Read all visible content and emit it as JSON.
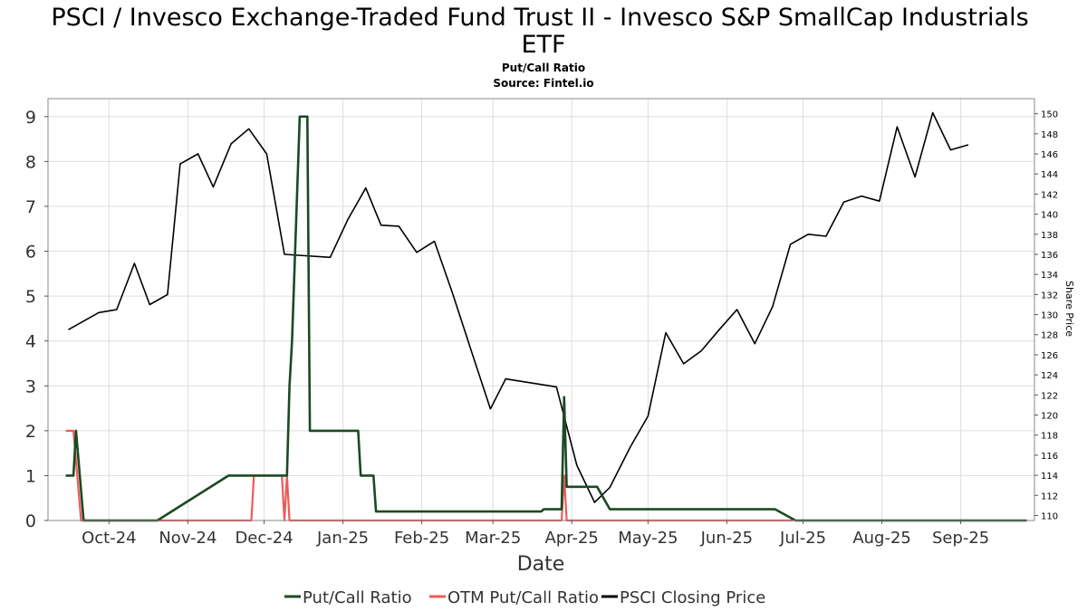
{
  "chart_data": {
    "type": "line",
    "title_line1": "PSCI / Invesco Exchange-Traded Fund Trust II - Invesco S&P SmallCap Industrials",
    "title_line2": "ETF",
    "subtitle": "Put/Call Ratio",
    "source": "Source: Fintel.io",
    "xlabel": "Date",
    "ylabel_right": "Share Price",
    "x_range": [
      "2024-09-07",
      "2025-09-30"
    ],
    "ylim_left": [
      0,
      9.4
    ],
    "ylim_right": [
      109.5,
      151.5
    ],
    "left_ticks": [
      "0",
      "1",
      "2",
      "3",
      "4",
      "5",
      "6",
      "7",
      "8",
      "9"
    ],
    "right_ticks": [
      "110",
      "112",
      "114",
      "116",
      "118",
      "120",
      "122",
      "124",
      "126",
      "128",
      "130",
      "132",
      "134",
      "136",
      "138",
      "140",
      "142",
      "144",
      "146",
      "148",
      "150"
    ],
    "x_ticks": [
      {
        "date": "2024-10-01",
        "label": "Oct-24"
      },
      {
        "date": "2024-11-01",
        "label": "Nov-24"
      },
      {
        "date": "2024-12-01",
        "label": "Dec-24"
      },
      {
        "date": "2025-01-01",
        "label": "Jan-25"
      },
      {
        "date": "2025-02-01",
        "label": "Feb-25"
      },
      {
        "date": "2025-03-01",
        "label": "Mar-25"
      },
      {
        "date": "2025-04-01",
        "label": "Apr-25"
      },
      {
        "date": "2025-05-01",
        "label": "May-25"
      },
      {
        "date": "2025-06-01",
        "label": "Jun-25"
      },
      {
        "date": "2025-07-01",
        "label": "Jul-25"
      },
      {
        "date": "2025-08-01",
        "label": "Aug-25"
      },
      {
        "date": "2025-09-01",
        "label": "Sep-25"
      }
    ],
    "grid": true,
    "legend_position": "bottom",
    "series": [
      {
        "name": "Put/Call Ratio",
        "color": "#1b4a22",
        "axis": "left",
        "points": [
          [
            "2024-09-14",
            1.0
          ],
          [
            "2024-09-17",
            1.0
          ],
          [
            "2024-09-18",
            2.0
          ],
          [
            "2024-09-21",
            0.0
          ],
          [
            "2024-10-20",
            0.0
          ],
          [
            "2024-11-17",
            1.0
          ],
          [
            "2024-12-10",
            1.0
          ],
          [
            "2024-12-11",
            3.0
          ],
          [
            "2024-12-12",
            4.0
          ],
          [
            "2024-12-15",
            9.0
          ],
          [
            "2024-12-18",
            9.0
          ],
          [
            "2024-12-19",
            2.0
          ],
          [
            "2025-01-07",
            2.0
          ],
          [
            "2025-01-08",
            1.0
          ],
          [
            "2025-01-13",
            1.0
          ],
          [
            "2025-01-14",
            0.2
          ],
          [
            "2025-03-20",
            0.2
          ],
          [
            "2025-03-21",
            0.25
          ],
          [
            "2025-03-28",
            0.25
          ],
          [
            "2025-03-29",
            2.75
          ],
          [
            "2025-03-30",
            0.75
          ],
          [
            "2025-04-11",
            0.75
          ],
          [
            "2025-04-16",
            0.25
          ],
          [
            "2025-06-20",
            0.25
          ],
          [
            "2025-06-28",
            0.0
          ],
          [
            "2025-09-27",
            0.0
          ]
        ]
      },
      {
        "name": "OTM Put/Call Ratio",
        "color": "#f05a5a",
        "axis": "left",
        "points": [
          [
            "2024-09-14",
            2.0
          ],
          [
            "2024-09-17",
            2.0
          ],
          [
            "2024-09-20",
            0.0
          ],
          [
            "2024-11-26",
            0.0
          ],
          [
            "2024-11-27",
            1.0
          ],
          [
            "2024-12-08",
            1.0
          ],
          [
            "2024-12-09",
            0.0
          ],
          [
            "2024-12-10",
            1.0
          ],
          [
            "2024-12-11",
            0.0
          ],
          [
            "2025-03-28",
            0.0
          ],
          [
            "2025-03-29",
            1.0
          ],
          [
            "2025-03-30",
            0.0
          ],
          [
            "2025-06-27",
            0.0
          ]
        ]
      },
      {
        "name": "PSCI Closing Price",
        "color": "#000000",
        "axis": "right",
        "points": [
          [
            "2024-09-15",
            128.5
          ],
          [
            "2024-09-27",
            130.2
          ],
          [
            "2024-10-04",
            130.5
          ],
          [
            "2024-10-11",
            135.1
          ],
          [
            "2024-10-17",
            131.0
          ],
          [
            "2024-10-24",
            132.0
          ],
          [
            "2024-10-29",
            145.0
          ],
          [
            "2024-11-05",
            146.0
          ],
          [
            "2024-11-11",
            142.7
          ],
          [
            "2024-11-18",
            147.0
          ],
          [
            "2024-11-25",
            148.5
          ],
          [
            "2024-12-02",
            146.0
          ],
          [
            "2024-12-09",
            136.0
          ],
          [
            "2024-12-27",
            135.7
          ],
          [
            "2025-01-03",
            139.5
          ],
          [
            "2025-01-10",
            142.6
          ],
          [
            "2025-01-16",
            138.9
          ],
          [
            "2025-01-23",
            138.8
          ],
          [
            "2025-01-30",
            136.2
          ],
          [
            "2025-02-06",
            137.3
          ],
          [
            "2025-02-13",
            132.2
          ],
          [
            "2025-02-21",
            126.0
          ],
          [
            "2025-02-28",
            120.6
          ],
          [
            "2025-03-06",
            123.6
          ],
          [
            "2025-03-26",
            122.8
          ],
          [
            "2025-04-03",
            115.0
          ],
          [
            "2025-04-10",
            111.3
          ],
          [
            "2025-04-16",
            112.8
          ],
          [
            "2025-04-24",
            116.8
          ],
          [
            "2025-05-01",
            119.9
          ],
          [
            "2025-05-08",
            128.2
          ],
          [
            "2025-05-15",
            125.1
          ],
          [
            "2025-05-22",
            126.4
          ],
          [
            "2025-05-29",
            128.5
          ],
          [
            "2025-06-05",
            130.5
          ],
          [
            "2025-06-12",
            127.1
          ],
          [
            "2025-06-19",
            130.8
          ],
          [
            "2025-06-26",
            137.0
          ],
          [
            "2025-07-03",
            138.0
          ],
          [
            "2025-07-10",
            137.8
          ],
          [
            "2025-07-17",
            141.2
          ],
          [
            "2025-07-24",
            141.8
          ],
          [
            "2025-07-31",
            141.3
          ],
          [
            "2025-08-07",
            148.7
          ],
          [
            "2025-08-14",
            143.7
          ],
          [
            "2025-08-21",
            150.1
          ],
          [
            "2025-08-28",
            146.4
          ],
          [
            "2025-09-04",
            146.9
          ]
        ]
      }
    ]
  }
}
